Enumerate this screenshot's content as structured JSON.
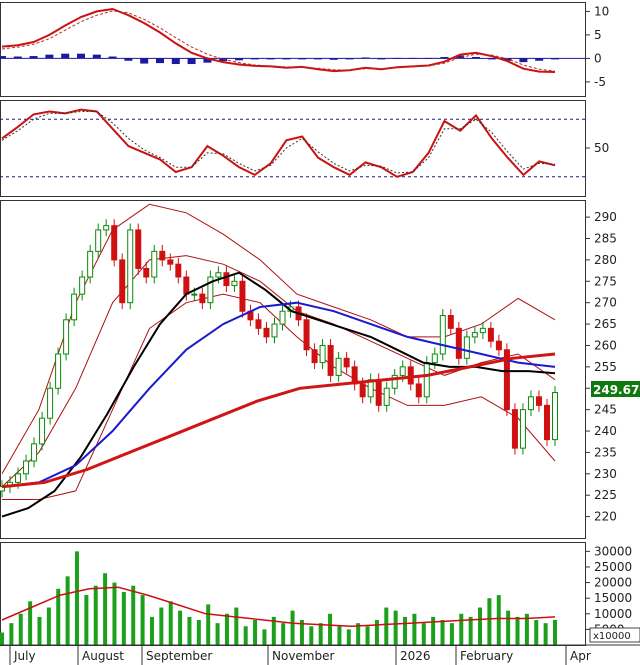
{
  "colors": {
    "up": "#0a8a0a",
    "down": "#d01010",
    "macd_line": "#cc1111",
    "macd_hist": "#1a1aa0",
    "rsi_line": "#cc1111",
    "ma_short": "#000000",
    "ma_mid": "#1a1ad0",
    "ma_long": "#d01515",
    "bollinger": "#b01010",
    "volume_bar": "#1aa01a",
    "volume_ma": "#cc1111"
  },
  "x_axis": {
    "months": [
      "July",
      "August",
      "September",
      "November",
      "2026",
      "February",
      "Apr"
    ]
  },
  "last_price_label": "249.6700",
  "volume_multiplier_label": "x10000",
  "chart_data": [
    {
      "type": "line",
      "panel": "macd",
      "yticks": [
        "10",
        "5",
        "0",
        "-5"
      ],
      "ylim": [
        -8,
        12
      ],
      "series": [
        {
          "kind": "line",
          "values": [
            2.5,
            2.8,
            3.5,
            5.0,
            7.0,
            8.8,
            10.0,
            10.5,
            9.2,
            7.5,
            5.5,
            3.2,
            1.2,
            0.0,
            -0.8,
            -1.3,
            -1.6,
            -1.7,
            -2.0,
            -1.8,
            -2.3,
            -2.7,
            -2.5,
            -2.0,
            -2.3,
            -1.9,
            -1.7,
            -1.5,
            -0.7,
            0.8,
            1.2,
            0.5,
            -0.6,
            -2.2,
            -2.8,
            -2.9
          ]
        },
        {
          "kind": "signal",
          "values": [
            2.0,
            2.4,
            3.0,
            4.2,
            6.0,
            7.8,
            9.2,
            10.1,
            9.7,
            8.3,
            6.5,
            4.4,
            2.4,
            0.9,
            -0.2,
            -0.9,
            -1.4,
            -1.6,
            -1.8,
            -1.8,
            -2.1,
            -2.4,
            -2.5,
            -2.2,
            -2.2,
            -2.0,
            -1.8,
            -1.6,
            -1.0,
            0.2,
            0.9,
            0.7,
            -0.1,
            -1.4,
            -2.3,
            -2.7
          ]
        },
        {
          "kind": "histogram",
          "values": [
            0.5,
            0.4,
            0.5,
            0.8,
            1.0,
            1.0,
            0.8,
            0.4,
            -0.5,
            -1.1,
            -1.0,
            -1.2,
            -1.2,
            -0.9,
            -0.6,
            -0.4,
            -0.2,
            -0.1,
            -0.2,
            0.0,
            -0.2,
            -0.3,
            0.0,
            0.2,
            -0.1,
            0.1,
            0.1,
            0.1,
            0.3,
            0.6,
            0.3,
            -0.2,
            -0.5,
            -0.8,
            -0.5,
            -0.2
          ]
        }
      ]
    },
    {
      "type": "line",
      "panel": "rsi",
      "yticks": [
        "50"
      ],
      "ylim": [
        0,
        100
      ],
      "reference_lines": [
        80,
        20
      ],
      "series": [
        {
          "kind": "rsi",
          "values": [
            60,
            72,
            85,
            88,
            86,
            90,
            88,
            70,
            52,
            45,
            38,
            25,
            30,
            52,
            42,
            30,
            22,
            34,
            58,
            62,
            40,
            30,
            22,
            35,
            30,
            20,
            25,
            45,
            78,
            68,
            84,
            60,
            40,
            22,
            36,
            32
          ]
        },
        {
          "kind": "rsi_signal",
          "values": [
            58,
            68,
            80,
            86,
            86,
            88,
            88,
            76,
            60,
            48,
            40,
            30,
            30,
            45,
            44,
            34,
            26,
            32,
            50,
            60,
            46,
            34,
            26,
            32,
            31,
            24,
            25,
            40,
            70,
            70,
            80,
            66,
            46,
            28,
            34,
            33
          ]
        }
      ]
    },
    {
      "type": "candlestick",
      "panel": "price",
      "yticks": [
        "290",
        "285",
        "280",
        "275",
        "270",
        "265",
        "260",
        "255",
        "250",
        "245",
        "240",
        "235",
        "230",
        "225",
        "220"
      ],
      "ylim": [
        215,
        294
      ],
      "series": [
        {
          "kind": "close",
          "values": [
            227,
            228,
            230,
            233,
            237,
            243,
            250,
            258,
            266,
            272,
            276,
            282,
            287,
            288,
            280,
            270,
            287,
            278,
            276,
            282,
            280,
            279,
            276,
            272,
            272,
            270,
            276,
            277,
            274,
            275,
            268,
            266,
            264,
            262,
            265,
            268,
            269,
            266,
            259,
            256,
            260,
            253,
            257,
            255,
            251,
            248,
            252,
            246,
            250,
            253,
            255,
            251,
            248,
            256,
            258,
            267,
            264,
            257,
            262,
            263,
            264,
            261,
            259,
            245,
            236,
            245,
            248,
            246,
            238,
            249
          ]
        },
        {
          "kind": "ma_short",
          "values": [
            220,
            222,
            226,
            234,
            244,
            255,
            265,
            272,
            275,
            277,
            273,
            268,
            266,
            264,
            262,
            259,
            256,
            255,
            255,
            254,
            254,
            253.5
          ]
        },
        {
          "kind": "ma_mid",
          "values": [
            227,
            228,
            232,
            240,
            250,
            259,
            265,
            269,
            270,
            268,
            265,
            262,
            260,
            258,
            256,
            255
          ]
        },
        {
          "kind": "ma_long",
          "values": [
            227,
            228,
            231,
            235,
            239,
            243,
            247,
            250,
            251,
            252,
            253,
            255,
            257,
            258
          ]
        },
        {
          "kind": "bollinger_upper",
          "values": [
            230,
            245,
            270,
            287,
            293,
            291,
            286,
            280,
            272,
            269,
            266,
            262,
            262,
            265,
            271,
            266
          ]
        },
        {
          "kind": "bollinger_middle",
          "values": [
            227,
            235,
            250,
            270,
            280,
            281,
            279,
            275,
            268,
            265,
            261,
            257,
            253,
            256,
            258,
            252
          ]
        },
        {
          "kind": "bollinger_lower",
          "values": [
            224,
            224,
            226,
            245,
            264,
            270,
            272,
            270,
            262,
            255,
            250,
            246,
            246,
            248,
            243,
            233
          ]
        }
      ]
    },
    {
      "type": "bar",
      "panel": "volume",
      "yticks": [
        "30000",
        "25000",
        "20000",
        "15000",
        "10000",
        "5000"
      ],
      "ylim": [
        0,
        33000
      ],
      "series": [
        {
          "kind": "volume",
          "values": [
            4000,
            7000,
            10000,
            14000,
            9000,
            12000,
            18000,
            22000,
            30000,
            16000,
            19000,
            23000,
            20000,
            17000,
            19000,
            16000,
            9000,
            12000,
            14000,
            11000,
            9000,
            8000,
            13000,
            7000,
            10000,
            12000,
            6000,
            8000,
            5000,
            9000,
            7000,
            11000,
            8000,
            6000,
            7000,
            10000,
            6000,
            5000,
            7000,
            6000,
            8000,
            12000,
            11000,
            9000,
            10000,
            7000,
            9000,
            8000,
            7000,
            10000,
            9000,
            12000,
            15000,
            16000,
            11000,
            9000,
            10000,
            8000,
            7000,
            8000
          ]
        },
        {
          "kind": "volume_ma",
          "values": [
            8000,
            12000,
            16000,
            18000,
            18500,
            16000,
            13000,
            10000,
            9000,
            8000,
            7000,
            6500,
            6000,
            6500,
            7000,
            7500,
            8000,
            8500,
            8500,
            9000
          ]
        }
      ]
    }
  ]
}
